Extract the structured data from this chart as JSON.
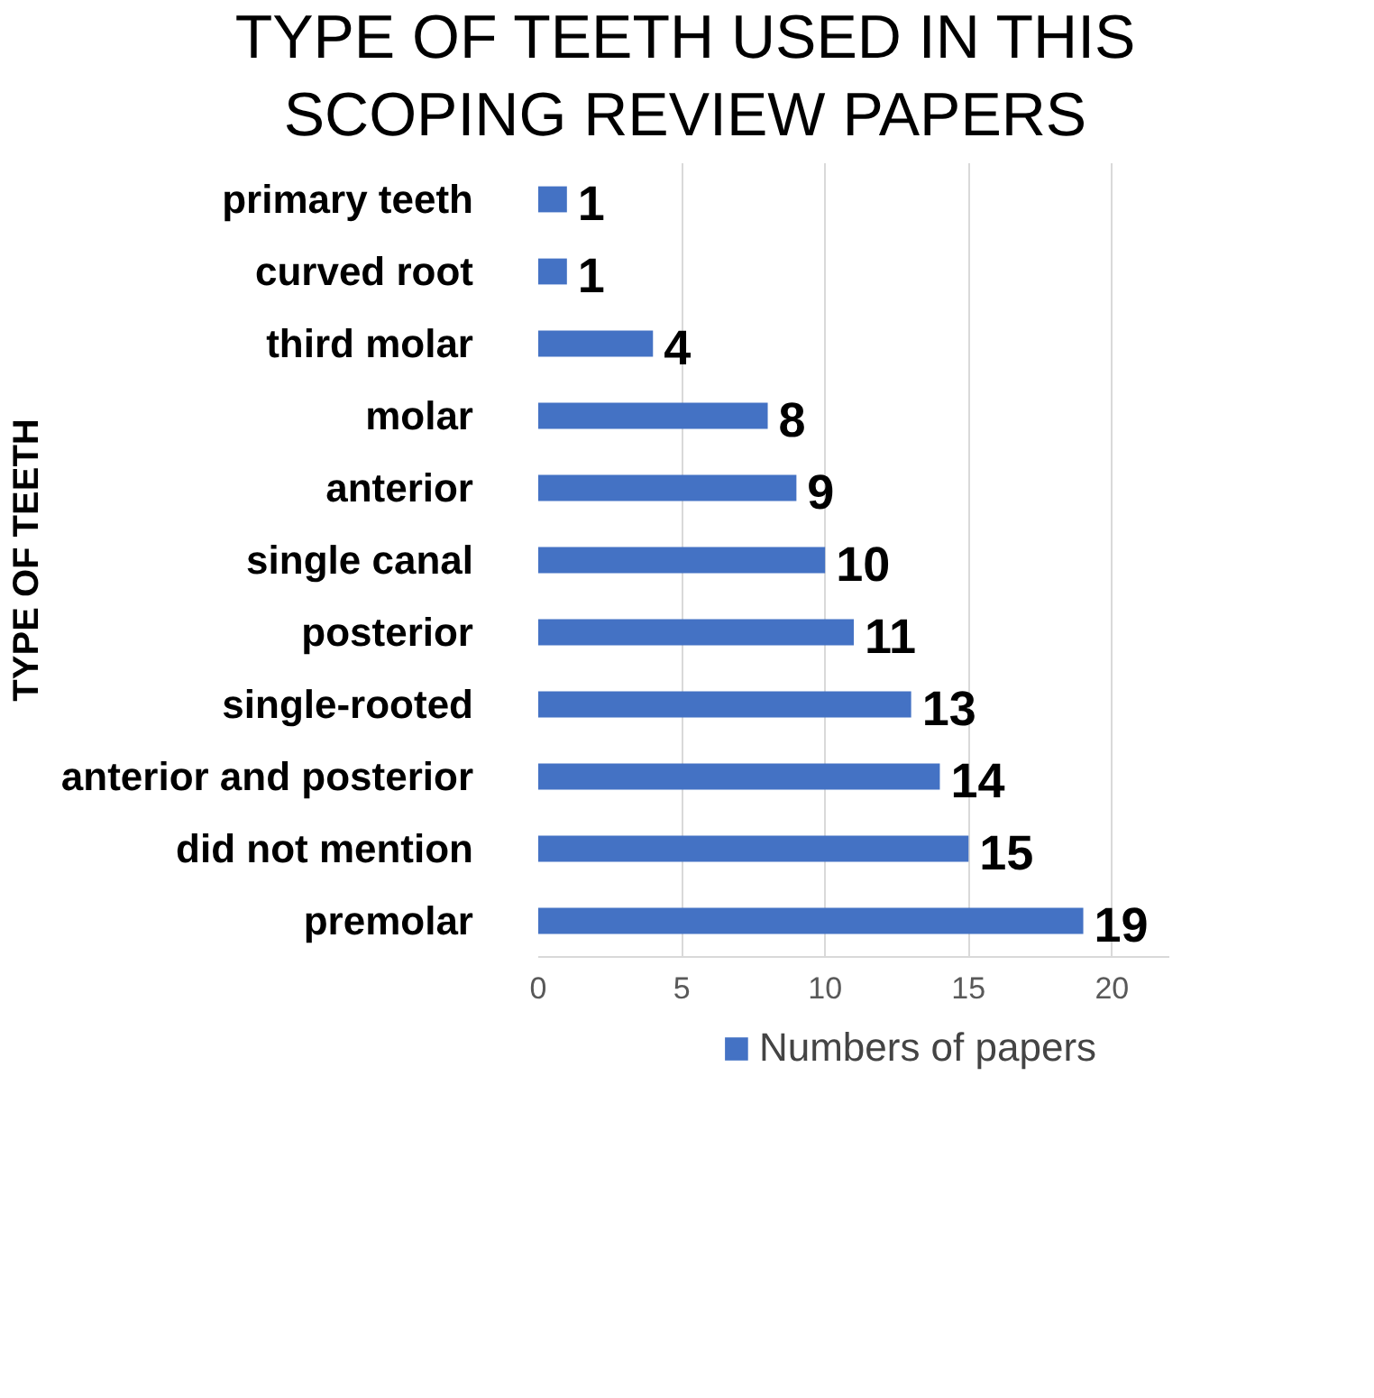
{
  "chart_data": {
    "type": "bar",
    "orientation": "horizontal",
    "title": "TYPE OF TEETH USED IN THIS SCOPING REVIEW PAPERS",
    "ylabel": "TYPE OF TEETH",
    "categories": [
      "primary teeth",
      "curved root",
      "third molar",
      "molar",
      "anterior",
      "single canal",
      "posterior",
      "single-rooted",
      "anterior and posterior",
      "did not mention",
      "premolar"
    ],
    "series": [
      {
        "name": "Numbers of papers",
        "color": "#4472c4",
        "values": [
          1,
          1,
          4,
          8,
          9,
          10,
          11,
          13,
          14,
          15,
          19
        ]
      }
    ],
    "xlim": [
      0,
      22
    ],
    "xticks": [
      0,
      5,
      10,
      15,
      20
    ],
    "grid": "x",
    "legend": "bottom",
    "data_labels": true
  }
}
